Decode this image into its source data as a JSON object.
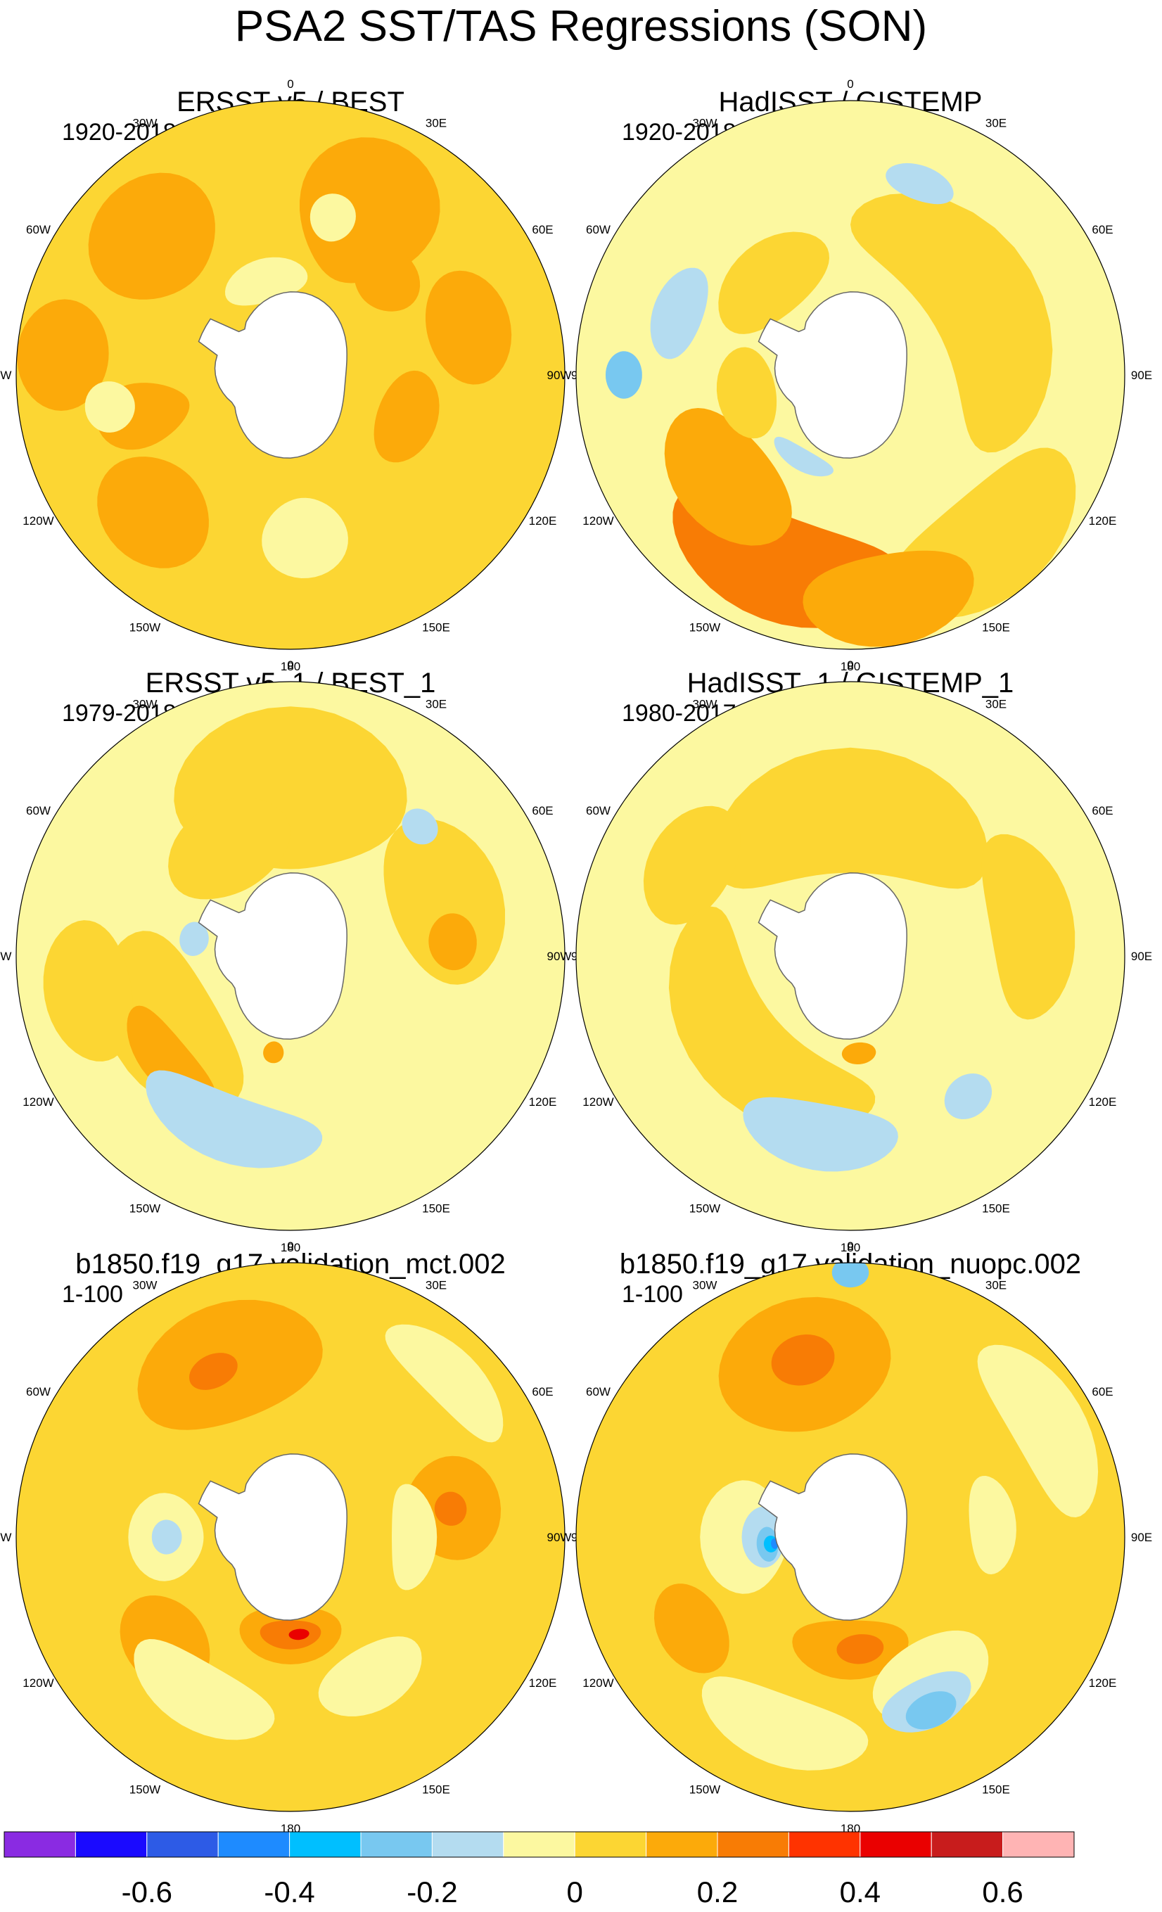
{
  "figure": {
    "title": "PSA2 SST/TAS Regressions (SON)"
  },
  "longitude_labels": [
    "0",
    "30E",
    "60E",
    "90E",
    "120E",
    "150E",
    "180",
    "150W",
    "120W",
    "90W",
    "60W",
    "30W"
  ],
  "colorbar": {
    "colors": [
      "#8a2be2",
      "#1a0aff",
      "#2d5be6",
      "#1e8bff",
      "#00bfff",
      "#78c8f0",
      "#b4dcf0",
      "#fcf8a0",
      "#fcd633",
      "#fcaa0a",
      "#f87c05",
      "#ff3300",
      "#ea0000",
      "#c81c1c",
      "#ffb4b4"
    ],
    "levels": [
      -0.7,
      -0.6,
      -0.5,
      -0.4,
      -0.3,
      -0.2,
      -0.1,
      0,
      0.1,
      0.2,
      0.3,
      0.4,
      0.5,
      0.6,
      0.7
    ],
    "tick_labels": [
      {
        "value": -0.6,
        "label": "-0.6"
      },
      {
        "value": -0.4,
        "label": "-0.4"
      },
      {
        "value": -0.2,
        "label": "-0.2"
      },
      {
        "value": 0,
        "label": "0"
      },
      {
        "value": 0.2,
        "label": "0.2"
      },
      {
        "value": 0.4,
        "label": "0.4"
      },
      {
        "value": 0.6,
        "label": "0.6"
      }
    ]
  },
  "chart_data": [
    {
      "type": "heatmap",
      "projection": "south polar stereographic",
      "title": "ERSST v5 / BEST",
      "period": "1920-2018",
      "base_value": 0.05,
      "features": [
        {
          "lon": 25,
          "lat": -42,
          "value": 0.15,
          "rl": 22,
          "rw": 18
        },
        {
          "lon": -45,
          "lat": -38,
          "value": 0.15,
          "rl": 20,
          "rw": 14
        },
        {
          "lon": 75,
          "lat": -40,
          "value": 0.15,
          "rl": 18,
          "rw": 10
        },
        {
          "lon": 45,
          "lat": -52,
          "value": 0.15,
          "rl": 15,
          "rw": 8
        },
        {
          "lon": 110,
          "lat": -55,
          "value": 0.15,
          "rl": 22,
          "rw": 8
        },
        {
          "lon": -85,
          "lat": -30,
          "value": 0.15,
          "rl": 14,
          "rw": 10
        },
        {
          "lon": -105,
          "lat": -48,
          "value": 0.15,
          "rl": 12,
          "rw": 12
        },
        {
          "lon": -135,
          "lat": -38,
          "value": 0.15,
          "rl": 18,
          "rw": 12
        },
        {
          "lon": -15,
          "lat": -62,
          "value": -0.05,
          "rl": 25,
          "rw": 6
        },
        {
          "lon": 15,
          "lat": -45,
          "value": -0.05,
          "rl": 8,
          "rw": 6
        },
        {
          "lon": 175,
          "lat": -45,
          "value": -0.05,
          "rl": 15,
          "rw": 10
        },
        {
          "lon": -100,
          "lat": -40,
          "value": -0.05,
          "rl": 8,
          "rw": 6
        }
      ]
    },
    {
      "type": "heatmap",
      "projection": "south polar stereographic",
      "title": "HadISST / GISTEMP",
      "period": "1920-2018",
      "base_value": -0.05,
      "features": [
        {
          "lon": 60,
          "lat": -48,
          "value": 0.05,
          "rl": 60,
          "rw": 14
        },
        {
          "lon": -40,
          "lat": -55,
          "value": 0.05,
          "rl": 30,
          "rw": 10
        },
        {
          "lon": 140,
          "lat": -32,
          "value": 0.05,
          "rl": 30,
          "rw": 12
        },
        {
          "lon": -160,
          "lat": -35,
          "value": 0.25,
          "rl": 35,
          "rw": 12
        },
        {
          "lon": -130,
          "lat": -45,
          "value": 0.15,
          "rl": 28,
          "rw": 12
        },
        {
          "lon": 170,
          "lat": -30,
          "value": 0.15,
          "rl": 22,
          "rw": 10
        },
        {
          "lon": -100,
          "lat": -60,
          "value": 0.05,
          "rl": 25,
          "rw": 8
        },
        {
          "lon": -150,
          "lat": -62,
          "value": -0.15,
          "rl": 20,
          "rw": 3
        },
        {
          "lon": -70,
          "lat": -40,
          "value": -0.15,
          "rl": 15,
          "rw": 6
        },
        {
          "lon": 20,
          "lat": -35,
          "value": -0.15,
          "rl": 10,
          "rw": 4
        },
        {
          "lon": -90,
          "lat": -30,
          "value": -0.25,
          "rl": 6,
          "rw": 4
        }
      ]
    },
    {
      "type": "heatmap",
      "projection": "south polar stereographic",
      "title": "ERSST v5_1 / BEST_1",
      "period": "1979-2018",
      "base_value": -0.05,
      "features": [
        {
          "lon": 0,
          "lat": -45,
          "value": 0.05,
          "rl": 40,
          "rw": 20
        },
        {
          "lon": -30,
          "lat": -55,
          "value": 0.05,
          "rl": 30,
          "rw": 12
        },
        {
          "lon": 70,
          "lat": -45,
          "value": 0.05,
          "rl": 30,
          "rw": 14
        },
        {
          "lon": -120,
          "lat": -50,
          "value": 0.05,
          "rl": 40,
          "rw": 14
        },
        {
          "lon": -100,
          "lat": -35,
          "value": 0.05,
          "rl": 20,
          "rw": 10
        },
        {
          "lon": -130,
          "lat": -45,
          "value": 0.15,
          "rl": 22,
          "rw": 6
        },
        {
          "lon": 85,
          "lat": -45,
          "value": 0.15,
          "rl": 10,
          "rw": 6
        },
        {
          "lon": -170,
          "lat": -62,
          "value": 0.15,
          "rl": 6,
          "rw": 3
        },
        {
          "lon": -160,
          "lat": -40,
          "value": -0.15,
          "rl": 30,
          "rw": 8
        },
        {
          "lon": 45,
          "lat": -40,
          "value": -0.15,
          "rl": 6,
          "rw": 4
        },
        {
          "lon": -80,
          "lat": -62,
          "value": -0.15,
          "rl": 10,
          "rw": 4
        }
      ]
    },
    {
      "type": "heatmap",
      "projection": "south polar stereographic",
      "title": "HadISST_1 / GISTEMP_1",
      "period": "1980-2017",
      "base_value": -0.05,
      "features": [
        {
          "lon": 0,
          "lat": -50,
          "value": 0.05,
          "rl": 60,
          "rw": 16
        },
        {
          "lon": 80,
          "lat": -40,
          "value": 0.05,
          "rl": 30,
          "rw": 10
        },
        {
          "lon": -60,
          "lat": -40,
          "value": 0.05,
          "rl": 20,
          "rw": 10
        },
        {
          "lon": -130,
          "lat": -50,
          "value": 0.05,
          "rl": 60,
          "rw": 12
        },
        {
          "lon": 175,
          "lat": -62,
          "value": 0.15,
          "rl": 10,
          "rw": 3
        },
        {
          "lon": -170,
          "lat": -40,
          "value": -0.15,
          "rl": 25,
          "rw": 8
        },
        {
          "lon": 140,
          "lat": -40,
          "value": -0.15,
          "rl": 8,
          "rw": 5
        }
      ]
    },
    {
      "type": "heatmap",
      "projection": "south polar stereographic",
      "title": "b1850.f19_g17.validation_mct.002",
      "period": "1-100",
      "base_value": 0.05,
      "features": [
        {
          "lon": -20,
          "lat": -40,
          "value": 0.15,
          "rl": 30,
          "rw": 14
        },
        {
          "lon": -25,
          "lat": -40,
          "value": 0.25,
          "rl": 8,
          "rw": 4
        },
        {
          "lon": 80,
          "lat": -45,
          "value": 0.15,
          "rl": 18,
          "rw": 12
        },
        {
          "lon": 80,
          "lat": -45,
          "value": 0.25,
          "rl": 6,
          "rw": 4
        },
        {
          "lon": 180,
          "lat": -62,
          "value": 0.15,
          "rl": 30,
          "rw": 8
        },
        {
          "lon": 180,
          "lat": -62,
          "value": 0.25,
          "rl": 18,
          "rw": 4
        },
        {
          "lon": 175,
          "lat": -62,
          "value": 0.45,
          "rl": 6,
          "rw": 1.5
        },
        {
          "lon": -130,
          "lat": -45,
          "value": 0.15,
          "rl": 18,
          "rw": 10
        },
        {
          "lon": 90,
          "lat": -55,
          "value": -0.05,
          "rl": 25,
          "rw": 6
        },
        {
          "lon": 45,
          "lat": -30,
          "value": -0.05,
          "rl": 20,
          "rw": 6
        },
        {
          "lon": -150,
          "lat": -40,
          "value": -0.05,
          "rl": 25,
          "rw": 8
        },
        {
          "lon": -90,
          "lat": -55,
          "value": -0.05,
          "rl": 20,
          "rw": 10
        },
        {
          "lon": -90,
          "lat": -55,
          "value": -0.15,
          "rl": 8,
          "rw": 4
        },
        {
          "lon": 150,
          "lat": -45,
          "value": -0.05,
          "rl": 20,
          "rw": 8
        }
      ]
    },
    {
      "type": "heatmap",
      "projection": "south polar stereographic",
      "title": "b1850.f19_g17.validation_nuopc.002",
      "period": "1-100",
      "base_value": 0.05,
      "features": [
        {
          "lon": -15,
          "lat": -42,
          "value": 0.15,
          "rl": 28,
          "rw": 16
        },
        {
          "lon": -15,
          "lat": -40,
          "value": 0.25,
          "rl": 10,
          "rw": 6
        },
        {
          "lon": 180,
          "lat": -58,
          "value": 0.15,
          "rl": 30,
          "rw": 8
        },
        {
          "lon": 175,
          "lat": -58,
          "value": 0.25,
          "rl": 12,
          "rw": 4
        },
        {
          "lon": -120,
          "lat": -40,
          "value": 0.15,
          "rl": 15,
          "rw": 8
        },
        {
          "lon": -90,
          "lat": -60,
          "value": -0.05,
          "rl": 30,
          "rw": 12
        },
        {
          "lon": -90,
          "lat": -65,
          "value": -0.15,
          "rl": 20,
          "rw": 6
        },
        {
          "lon": -95,
          "lat": -66,
          "value": -0.25,
          "rl": 12,
          "rw": 3
        },
        {
          "lon": -95,
          "lat": -67,
          "value": -0.35,
          "rl": 6,
          "rw": 2
        },
        {
          "lon": -95,
          "lat": -68,
          "value": -0.45,
          "rl": 4,
          "rw": 1
        },
        {
          "lon": 150,
          "lat": -45,
          "value": -0.05,
          "rl": 22,
          "rw": 10
        },
        {
          "lon": 155,
          "lat": -40,
          "value": -0.15,
          "rl": 15,
          "rw": 6
        },
        {
          "lon": 155,
          "lat": -38,
          "value": -0.25,
          "rl": 8,
          "rw": 4
        },
        {
          "lon": -160,
          "lat": -35,
          "value": -0.05,
          "rl": 25,
          "rw": 8
        },
        {
          "lon": 60,
          "lat": -30,
          "value": -0.05,
          "rl": 25,
          "rw": 8
        },
        {
          "lon": 85,
          "lat": -50,
          "value": -0.05,
          "rl": 20,
          "rw": 6
        },
        {
          "lon": 0,
          "lat": -22,
          "value": -0.25,
          "rl": 4,
          "rw": 3
        }
      ]
    }
  ]
}
